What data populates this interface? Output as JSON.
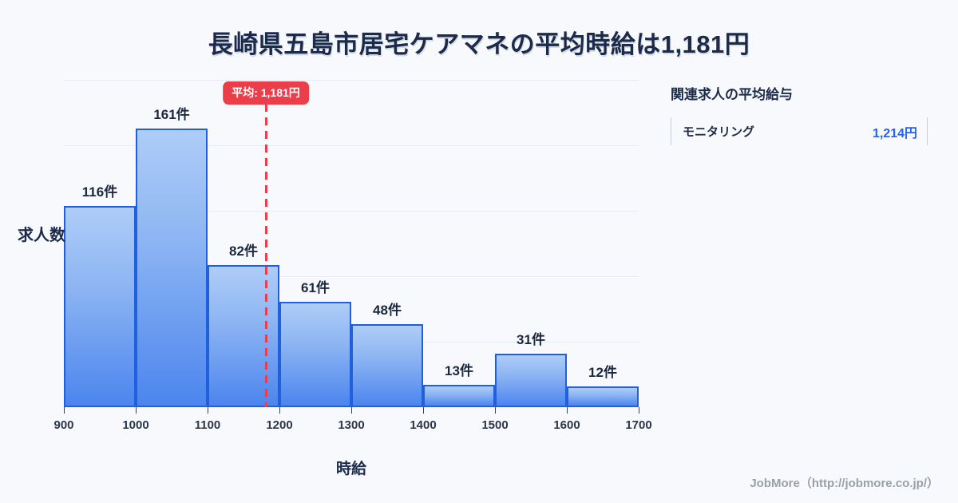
{
  "title": "長崎県五島市居宅ケアマネの平均時給は1,181円",
  "chart_data": {
    "type": "bar",
    "subtype": "histogram",
    "xlabel": "時給",
    "ylabel": "求人数",
    "bin_edges": [
      900,
      1000,
      1100,
      1200,
      1300,
      1400,
      1500,
      1600,
      1700
    ],
    "xticks": [
      "900",
      "1000",
      "1100",
      "1200",
      "1300",
      "1400",
      "1500",
      "1600",
      "1700"
    ],
    "values": [
      116,
      161,
      82,
      61,
      48,
      13,
      31,
      12
    ],
    "bar_labels": [
      "116件",
      "161件",
      "82件",
      "61件",
      "48件",
      "13件",
      "31件",
      "12件"
    ],
    "unit": "件",
    "xlim": [
      900,
      1700
    ],
    "ylim": [
      0,
      189
    ],
    "grid": "horizontal",
    "average": {
      "value": 1181,
      "label": "平均: 1,181円"
    }
  },
  "side_panel": {
    "title": "関連求人の平均給与",
    "rows": [
      {
        "label": "モニタリング",
        "value": "1,214円"
      }
    ]
  },
  "footer": {
    "credit": "JobMore（http://jobmore.co.jp/）"
  },
  "colors": {
    "background": "#f7f9fc",
    "bar_border": "#2160dd",
    "bar_gradient_top": "#aecdf7",
    "bar_gradient_bottom": "#4b85ee",
    "average_red": "#ea3f4b",
    "value_blue": "#2563eb",
    "text_dark": "#1d2b4b",
    "gridline": "#e7ebf2",
    "credit_gray": "#9aa0a8"
  }
}
